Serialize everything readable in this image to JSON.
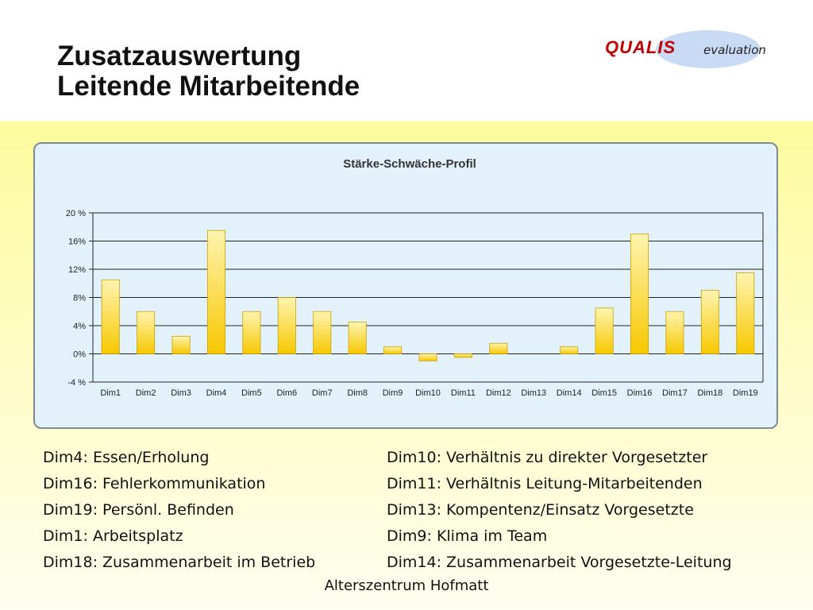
{
  "title": {
    "line1": "Zusatzauswertung",
    "line2": "Leitende Mitarbeitende"
  },
  "logo": {
    "brand": "QUALIS",
    "suffix": "evaluation",
    "brand_color": "#c00000",
    "ellipse_color": "#c9daf5"
  },
  "chart_data": {
    "type": "bar",
    "title": "Stärke-Schwäche-Profil",
    "categories": [
      "Dim1",
      "Dim2",
      "Dim3",
      "Dim4",
      "Dim5",
      "Dim6",
      "Dim7",
      "Dim8",
      "Dim9",
      "Dim10",
      "Dim11",
      "Dim12",
      "Dim13",
      "Dim14",
      "Dim15",
      "Dim16",
      "Dim17",
      "Dim18",
      "Dim19"
    ],
    "values": [
      10.5,
      6,
      2.5,
      17.5,
      6,
      8,
      6,
      4.5,
      1,
      -1,
      -0.5,
      1.5,
      0,
      1,
      6.5,
      17,
      6,
      9,
      11.5
    ],
    "ylim": [
      -4,
      20
    ],
    "yticks": [
      -4,
      0,
      4,
      8,
      12,
      16,
      20
    ],
    "ytick_labels": [
      "-4 %",
      "0%",
      "4%",
      "8%",
      "12%",
      "16%",
      "20 %"
    ],
    "xlabel": "",
    "ylabel": "",
    "grid": true,
    "bar_color_top": "#fff4b0",
    "bar_color_bottom": "#f7c800",
    "bar_stroke": "#c9a100"
  },
  "legend": {
    "left": [
      "Dim4: Essen/Erholung",
      "Dim16: Fehlerkommunikation",
      "Dim19: Persönl. Befinden",
      "Dim1: Arbeitsplatz",
      "Dim18: Zusammenarbeit im Betrieb"
    ],
    "right": [
      "Dim10: Verhältnis zu direkter Vorgesetzter",
      "Dim11: Verhältnis Leitung-Mitarbeitenden",
      "Dim13: Kompentenz/Einsatz Vorgesetzte",
      "Dim9: Klima im Team",
      "Dim14: Zusammenarbeit Vorgesetzte-Leitung"
    ]
  },
  "footer": "Alterszentrum Hofmatt"
}
